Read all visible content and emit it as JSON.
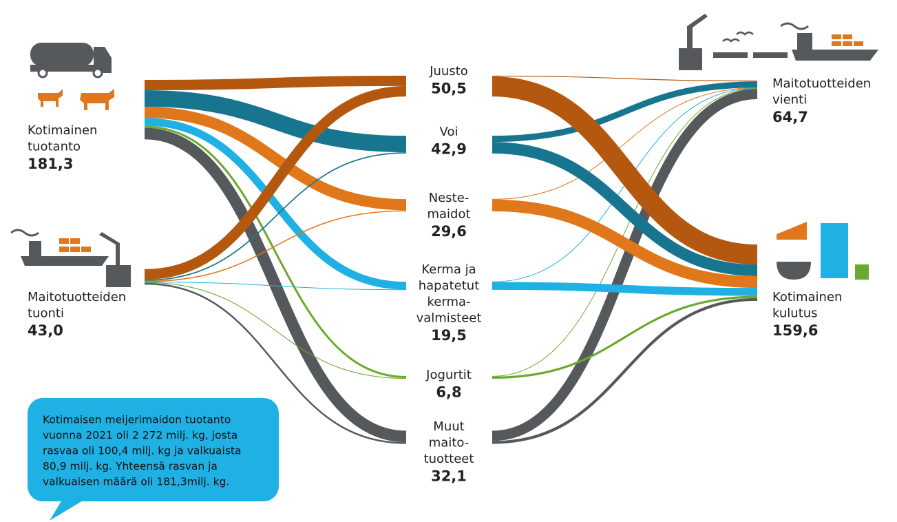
{
  "chart_data": {
    "type": "sankey",
    "sources": [
      {
        "label": [
          "Kotimainen",
          "tuotanto"
        ],
        "value": 181.3,
        "value_label": "181,3"
      },
      {
        "label": [
          "Maitotuotteiden",
          "tuonti"
        ],
        "value": 43.0,
        "value_label": "43,0"
      }
    ],
    "products": [
      {
        "label": [
          "Juusto"
        ],
        "value": 50.5,
        "value_label": "50,5",
        "color": "#b5580f"
      },
      {
        "label": [
          "Voi"
        ],
        "value": 42.9,
        "value_label": "42,9",
        "color": "#18758f"
      },
      {
        "label": [
          "Neste-",
          "maidot"
        ],
        "value": 29.6,
        "value_label": "29,6",
        "color": "#e0771b"
      },
      {
        "label": [
          "Kerma ja",
          "hapatetut",
          "kerma-",
          "valmisteet"
        ],
        "value": 19.5,
        "value_label": "19,5",
        "color": "#1fb1e3"
      },
      {
        "label": [
          "Jogurtit"
        ],
        "value": 6.8,
        "value_label": "6,8",
        "color": "#6aa92c"
      },
      {
        "label": [
          "Muut",
          "maito-",
          "tuotteet"
        ],
        "value": 32.1,
        "value_label": "32,1",
        "color": "#55595b"
      }
    ],
    "destinations": [
      {
        "label": [
          "Maitotuotteiden",
          "vienti"
        ],
        "value": 64.7,
        "value_label": "64,7"
      },
      {
        "label": [
          "Kotimainen",
          "kulutus"
        ],
        "value": 159.6,
        "value_label": "159,6"
      }
    ],
    "inflows": [
      {
        "from": 0,
        "to": 0,
        "value": 25
      },
      {
        "from": 0,
        "to": 1,
        "value": 40
      },
      {
        "from": 0,
        "to": 2,
        "value": 27
      },
      {
        "from": 0,
        "to": 3,
        "value": 19
      },
      {
        "from": 0,
        "to": 4,
        "value": 5
      },
      {
        "from": 0,
        "to": 5,
        "value": 28
      },
      {
        "from": 1,
        "to": 0,
        "value": 25.5
      },
      {
        "from": 1,
        "to": 1,
        "value": 2.9
      },
      {
        "from": 1,
        "to": 2,
        "value": 2.6
      },
      {
        "from": 1,
        "to": 3,
        "value": 0.5
      },
      {
        "from": 1,
        "to": 4,
        "value": 1.8
      },
      {
        "from": 1,
        "to": 5,
        "value": 4.1
      }
    ],
    "outflows": [
      {
        "from": 0,
        "to": 0,
        "value": 2
      },
      {
        "from": 1,
        "to": 0,
        "value": 15
      },
      {
        "from": 2,
        "to": 0,
        "value": 1
      },
      {
        "from": 3,
        "to": 0,
        "value": 0.5
      },
      {
        "from": 4,
        "to": 0,
        "value": 1.5
      },
      {
        "from": 5,
        "to": 0,
        "value": 25
      },
      {
        "from": 0,
        "to": 1,
        "value": 48.5
      },
      {
        "from": 1,
        "to": 1,
        "value": 28
      },
      {
        "from": 2,
        "to": 1,
        "value": 28.6
      },
      {
        "from": 3,
        "to": 1,
        "value": 19
      },
      {
        "from": 4,
        "to": 1,
        "value": 5.3
      },
      {
        "from": 5,
        "to": 1,
        "value": 7
      }
    ],
    "annotation": [
      "Kotimaisen meijerimaidon tuotanto",
      "vuonna 2021 oli 2 272 milj. kg, josta",
      "rasvaa oli 100,4 milj. kg ja valkuaista",
      "80,9 milj. kg. Yhteensä rasvan ja",
      "valkuaisen määrä oli 181,3milj. kg."
    ]
  }
}
